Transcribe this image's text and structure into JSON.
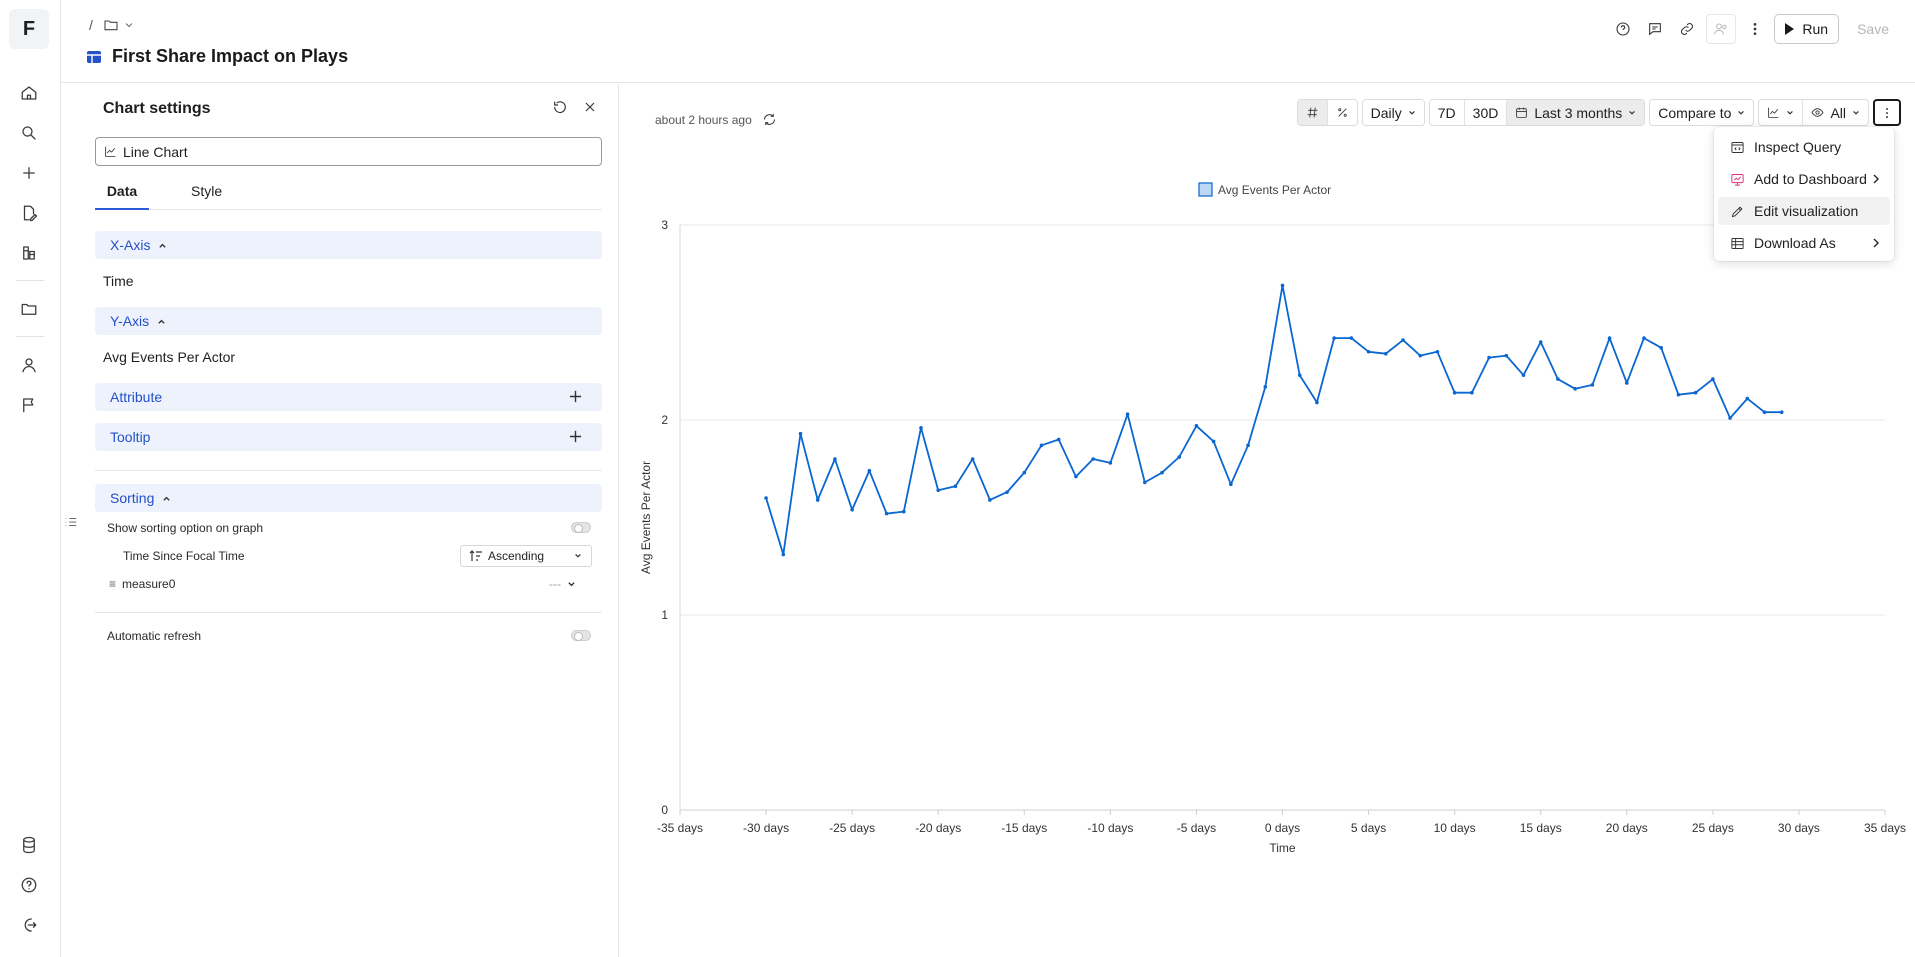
{
  "app": {
    "logo_letter": "F"
  },
  "breadcrumb": {
    "separator": "/"
  },
  "page": {
    "title": "First Share Impact on Plays"
  },
  "header_actions": {
    "run_label": "Run",
    "save_label": "Save"
  },
  "settings": {
    "title": "Chart settings",
    "chart_type": "Line Chart",
    "tabs": [
      {
        "label": "Data"
      },
      {
        "label": "Style"
      }
    ],
    "x_axis": {
      "label": "X-Axis",
      "value": "Time"
    },
    "y_axis": {
      "label": "Y-Axis",
      "value": "Avg Events Per Actor"
    },
    "attribute": {
      "label": "Attribute"
    },
    "tooltip": {
      "label": "Tooltip"
    },
    "sorting": {
      "label": "Sorting",
      "show_option_label": "Show sorting option on graph",
      "field_label": "Time Since Focal Time",
      "order": "Ascending",
      "measure_label": "measure0",
      "measure_value": "---"
    },
    "auto_refresh_label": "Automatic refresh"
  },
  "main": {
    "updated": "about 2 hours ago",
    "toolbar": {
      "granularity": "Daily",
      "range_7d": "7D",
      "range_30d": "30D",
      "date_range": "Last 3 months",
      "compare": "Compare to",
      "visibility": "All"
    }
  },
  "menu": {
    "items": [
      {
        "label": "Inspect Query"
      },
      {
        "label": "Add to Dashboard"
      },
      {
        "label": "Edit visualization"
      },
      {
        "label": "Download As"
      }
    ]
  },
  "colors": {
    "line": "#0a66d0",
    "accent": "#2450c8",
    "section_bg": "#edf2fc"
  },
  "chart_data": {
    "type": "line",
    "xlabel": "Time",
    "ylabel": "Avg Events Per Actor",
    "ylim": [
      0,
      3
    ],
    "xlim": [
      -35,
      35
    ],
    "yticks": [
      "0",
      "1",
      "2",
      "3"
    ],
    "xticks": [
      "-35 days",
      "-30 days",
      "-25 days",
      "-20 days",
      "-15 days",
      "-10 days",
      "-5 days",
      "0 days",
      "5 days",
      "10 days",
      "15 days",
      "20 days",
      "25 days",
      "30 days",
      "35 days"
    ],
    "series": [
      {
        "name": "Avg Events Per Actor",
        "x": [
          -30,
          -29,
          -28,
          -27,
          -26,
          -25,
          -24,
          -23,
          -22,
          -21,
          -20,
          -19,
          -18,
          -17,
          -16,
          -15,
          -14,
          -13,
          -12,
          -11,
          -10,
          -9,
          -8,
          -7,
          -6,
          -5,
          -4,
          -3,
          -2,
          -1,
          0,
          1,
          2,
          3,
          4,
          5,
          6,
          7,
          8,
          9,
          10,
          11,
          12,
          13,
          14,
          15,
          16,
          17,
          18,
          19,
          20,
          21,
          22,
          23,
          24,
          25,
          26,
          27,
          28,
          29
        ],
        "values": [
          1.6,
          1.31,
          1.93,
          1.59,
          1.8,
          1.54,
          1.74,
          1.52,
          1.53,
          1.96,
          1.64,
          1.66,
          1.8,
          1.59,
          1.63,
          1.73,
          1.87,
          1.9,
          1.71,
          1.8,
          1.78,
          2.03,
          1.68,
          1.73,
          1.81,
          1.97,
          1.89,
          1.67,
          1.87,
          2.17,
          2.69,
          2.23,
          2.09,
          2.42,
          2.42,
          2.35,
          2.34,
          2.41,
          2.33,
          2.35,
          2.14,
          2.14,
          2.32,
          2.33,
          2.23,
          2.4,
          2.21,
          2.16,
          2.18,
          2.42,
          2.19,
          2.42,
          2.37,
          2.13,
          2.14,
          2.21,
          2.01,
          2.11,
          2.04,
          2.04
        ]
      }
    ]
  }
}
